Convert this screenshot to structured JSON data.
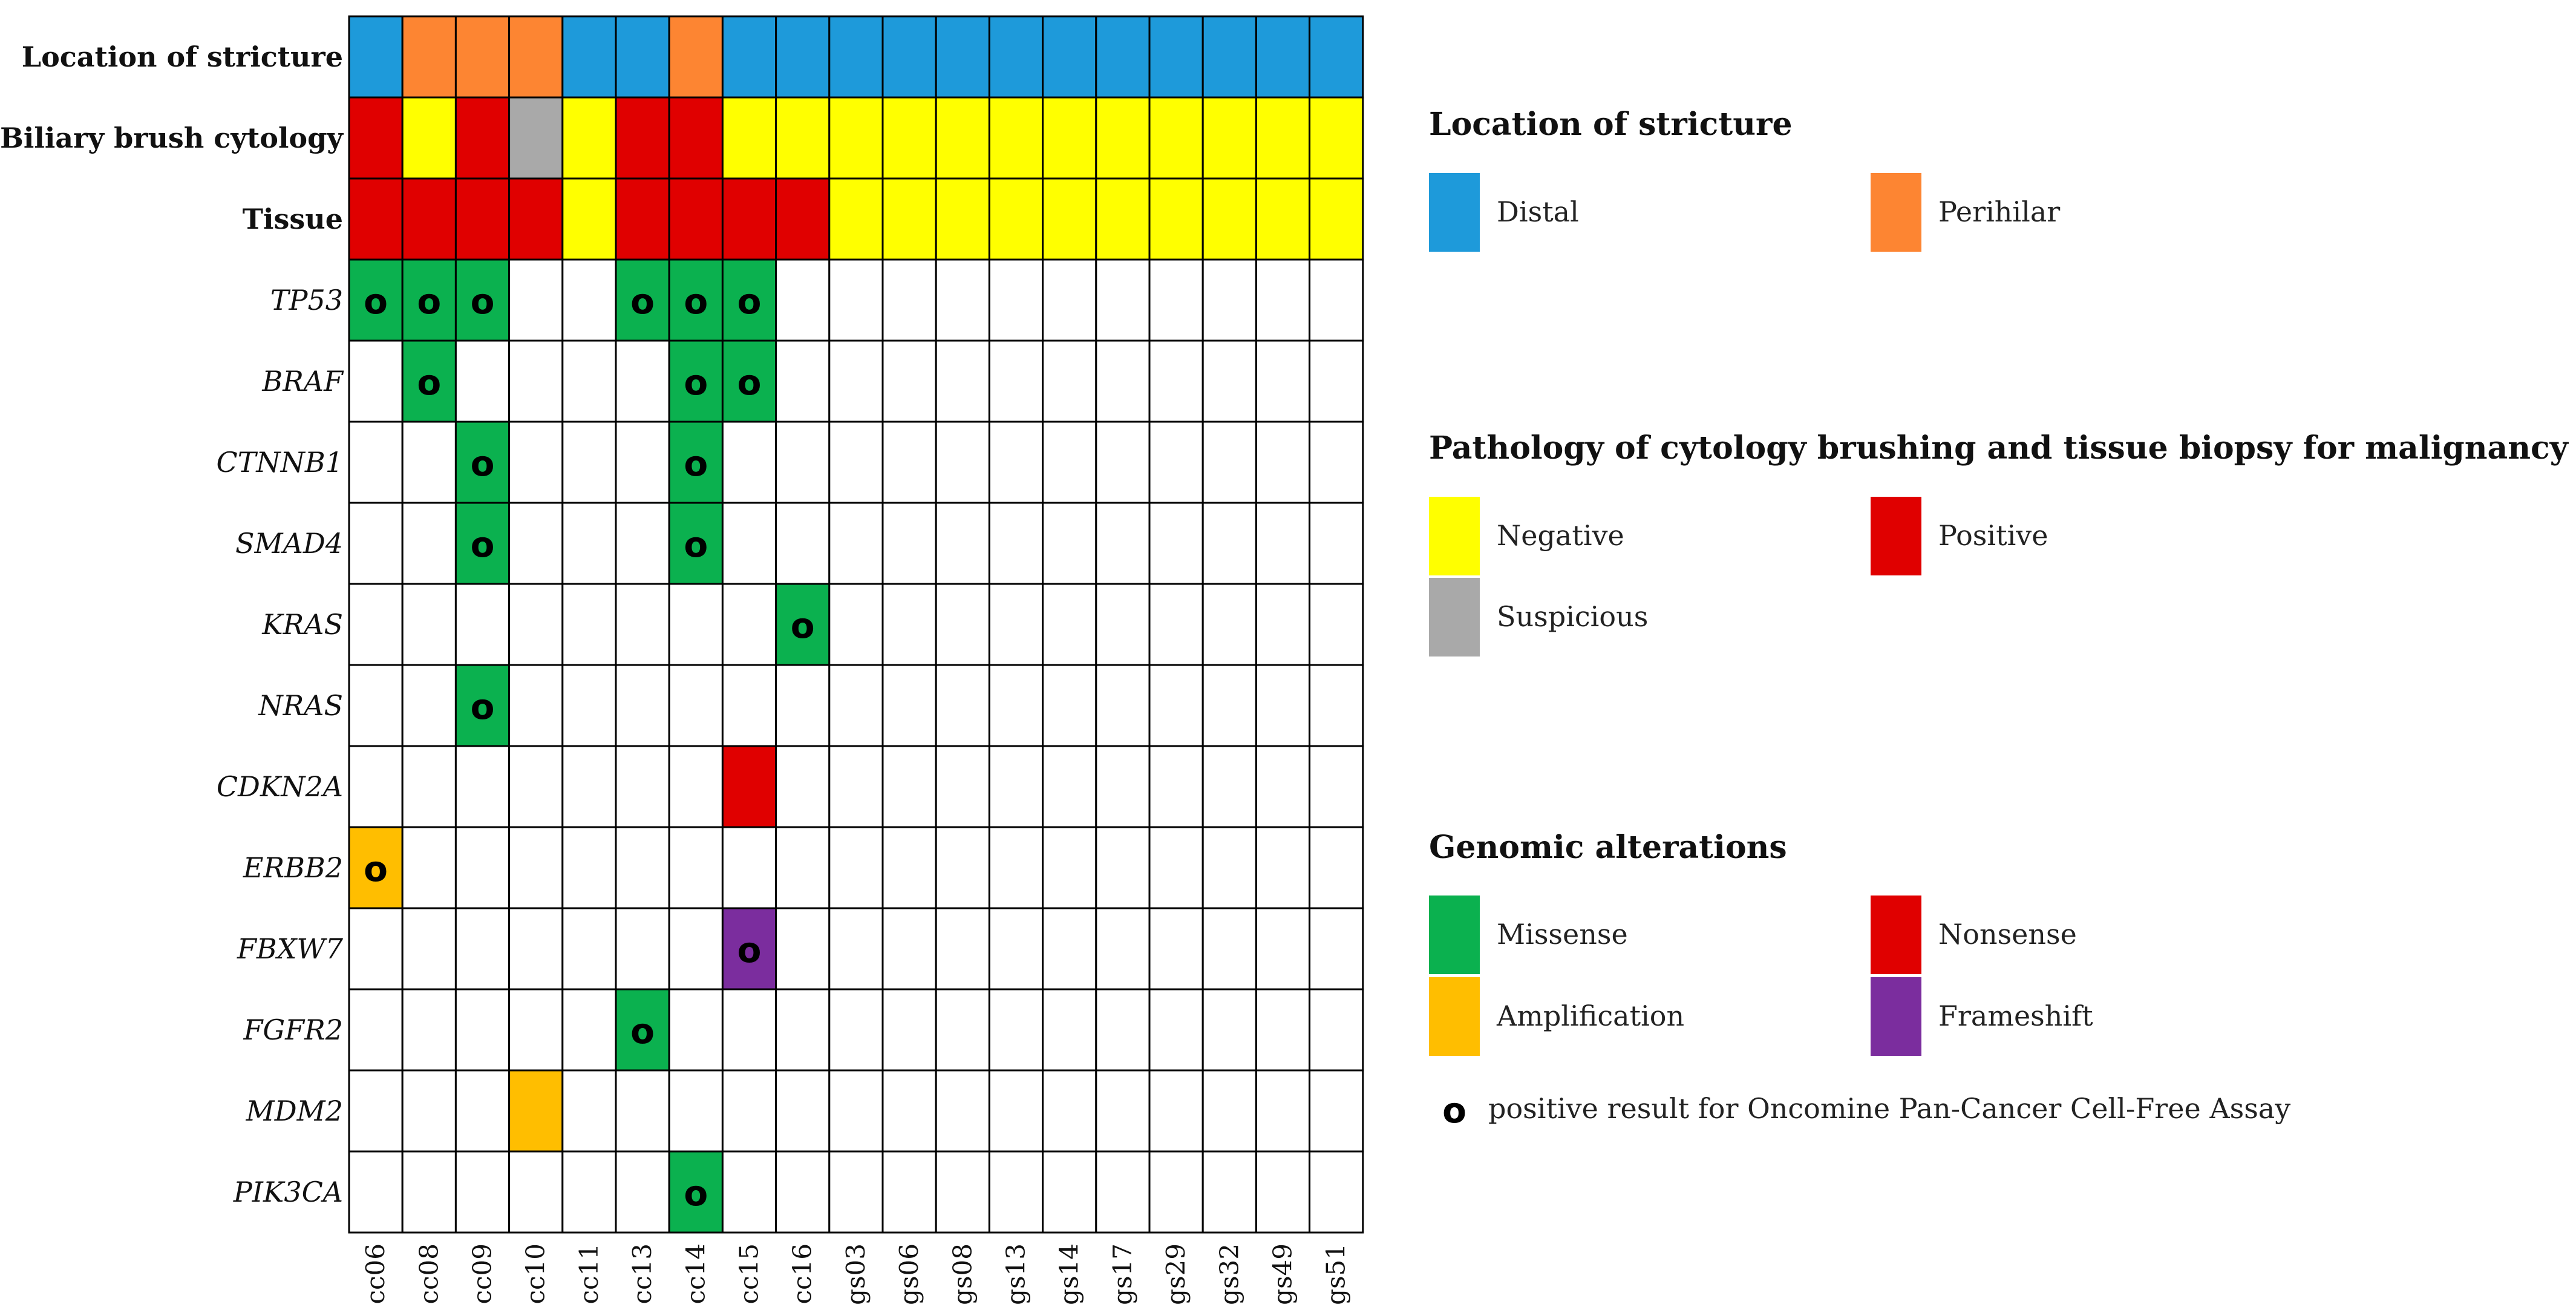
{
  "chart_data": {
    "type": "heatmap",
    "title": "",
    "samples": [
      "cc06",
      "cc08",
      "cc09",
      "cc10",
      "cc11",
      "cc13",
      "cc14",
      "cc15",
      "cc16",
      "gs03",
      "gs06",
      "gs08",
      "gs13",
      "gs14",
      "gs17",
      "gs29",
      "gs32",
      "gs49",
      "gs51"
    ],
    "clinical_rows": [
      {
        "label": "Location of stricture",
        "values": [
          "Distal",
          "Perihilar",
          "Perihilar",
          "Perihilar",
          "Distal",
          "Distal",
          "Perihilar",
          "Distal",
          "Distal",
          "Distal",
          "Distal",
          "Distal",
          "Distal",
          "Distal",
          "Distal",
          "Distal",
          "Distal",
          "Distal",
          "Distal"
        ]
      },
      {
        "label": "Biliary brush cytology",
        "values": [
          "Positive",
          "Negative",
          "Positive",
          "Suspicious",
          "Negative",
          "Positive",
          "Positive",
          "Negative",
          "Negative",
          "Negative",
          "Negative",
          "Negative",
          "Negative",
          "Negative",
          "Negative",
          "Negative",
          "Negative",
          "Negative",
          "Negative"
        ]
      },
      {
        "label": "Tissue",
        "values": [
          "Positive",
          "Positive",
          "Positive",
          "Positive",
          "Negative",
          "Positive",
          "Positive",
          "Positive",
          "Positive",
          "Negative",
          "Negative",
          "Negative",
          "Negative",
          "Negative",
          "Negative",
          "Negative",
          "Negative",
          "Negative",
          "Negative"
        ]
      }
    ],
    "gene_rows": [
      {
        "label": "TP53",
        "alterations": [
          {
            "sample": "cc06",
            "type": "Missense",
            "cfdna": true
          },
          {
            "sample": "cc08",
            "type": "Missense",
            "cfdna": true
          },
          {
            "sample": "cc09",
            "type": "Missense",
            "cfdna": true
          },
          {
            "sample": "cc13",
            "type": "Missense",
            "cfdna": true
          },
          {
            "sample": "cc14",
            "type": "Missense",
            "cfdna": true
          },
          {
            "sample": "cc15",
            "type": "Missense",
            "cfdna": true
          }
        ]
      },
      {
        "label": "BRAF",
        "alterations": [
          {
            "sample": "cc08",
            "type": "Missense",
            "cfdna": true
          },
          {
            "sample": "cc14",
            "type": "Missense",
            "cfdna": true
          },
          {
            "sample": "cc15",
            "type": "Missense",
            "cfdna": true
          }
        ]
      },
      {
        "label": "CTNNB1",
        "alterations": [
          {
            "sample": "cc09",
            "type": "Missense",
            "cfdna": true
          },
          {
            "sample": "cc14",
            "type": "Missense",
            "cfdna": true
          }
        ]
      },
      {
        "label": "SMAD4",
        "alterations": [
          {
            "sample": "cc09",
            "type": "Missense",
            "cfdna": true
          },
          {
            "sample": "cc14",
            "type": "Missense",
            "cfdna": true
          }
        ]
      },
      {
        "label": "KRAS",
        "alterations": [
          {
            "sample": "cc16",
            "type": "Missense",
            "cfdna": true
          }
        ]
      },
      {
        "label": "NRAS",
        "alterations": [
          {
            "sample": "cc09",
            "type": "Missense",
            "cfdna": true
          }
        ]
      },
      {
        "label": "CDKN2A",
        "alterations": [
          {
            "sample": "cc15",
            "type": "Nonsense",
            "cfdna": false
          }
        ]
      },
      {
        "label": "ERBB2",
        "alterations": [
          {
            "sample": "cc06",
            "type": "Amplification",
            "cfdna": true
          }
        ]
      },
      {
        "label": "FBXW7",
        "alterations": [
          {
            "sample": "cc15",
            "type": "Frameshift",
            "cfdna": true
          }
        ]
      },
      {
        "label": "FGFR2",
        "alterations": [
          {
            "sample": "cc13",
            "type": "Missense",
            "cfdna": true
          }
        ]
      },
      {
        "label": "MDM2",
        "alterations": [
          {
            "sample": "cc10",
            "type": "Amplification",
            "cfdna": false
          }
        ]
      },
      {
        "label": "PIK3CA",
        "alterations": [
          {
            "sample": "cc14",
            "type": "Missense",
            "cfdna": true
          }
        ]
      }
    ],
    "cfdna_marker": "o",
    "legend": [
      {
        "title": "Location of stricture",
        "items": [
          {
            "label": "Distal",
            "color": "#1E9ADA"
          },
          {
            "label": "Perihilar",
            "color": "#FD8532"
          }
        ]
      },
      {
        "title": "Pathology of cytology brushing and tissue biopsy for malignancy",
        "items": [
          {
            "label": "Negative",
            "color": "#FFFF00"
          },
          {
            "label": "Positive",
            "color": "#E00000"
          },
          {
            "label": "Suspicious",
            "color": "#A9A9A9"
          }
        ]
      },
      {
        "title": "Genomic alterations",
        "items": [
          {
            "label": "Missense",
            "color": "#0BB14F"
          },
          {
            "label": "Nonsense",
            "color": "#E00000"
          },
          {
            "label": "Amplification",
            "color": "#FFBE00"
          },
          {
            "label": "Frameshift",
            "color": "#7B2D9E"
          }
        ]
      }
    ],
    "marker_legend": {
      "symbol": "o",
      "label": "positive result for Oncomine Pan-Cancer Cell-Free Assay"
    }
  }
}
